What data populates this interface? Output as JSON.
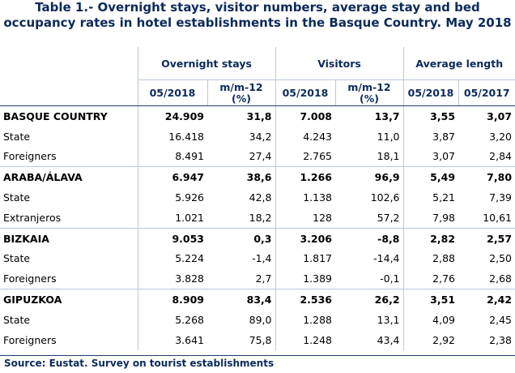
{
  "title": "Table 1.- Overnight stays, visitor numbers, average stay and bed occupancy rates in hotel establishments in the Basque Country. May 2018",
  "headers": {
    "groups": [
      "Overnight stays",
      "Visitors",
      "Average length"
    ],
    "sub": [
      "05/2018",
      "m/m-12 (%)",
      "05/2018",
      "m/m-12 (%)",
      "05/2018",
      "05/2017"
    ]
  },
  "rows": [
    {
      "label": "BASQUE COUNTRY",
      "type": "region",
      "values": [
        "24.909",
        "31,8",
        "7.008",
        "13,7",
        "3,55",
        "3,07"
      ]
    },
    {
      "label": "State",
      "type": "sub",
      "values": [
        "16.418",
        "34,2",
        "4.243",
        "11,0",
        "3,87",
        "3,20"
      ]
    },
    {
      "label": "Foreigners",
      "type": "sub",
      "values": [
        "8.491",
        "27,4",
        "2.765",
        "18,1",
        "3,07",
        "2,84"
      ]
    },
    {
      "label": "ARABA/ÁLAVA",
      "type": "region",
      "values": [
        "6.947",
        "38,6",
        "1.266",
        "96,9",
        "5,49",
        "7,80"
      ]
    },
    {
      "label": "State",
      "type": "sub",
      "values": [
        "5.926",
        "42,8",
        "1.138",
        "102,6",
        "5,21",
        "7,39"
      ]
    },
    {
      "label": "Extranjeros",
      "type": "sub",
      "values": [
        "1.021",
        "18,2",
        "128",
        "57,2",
        "7,98",
        "10,61"
      ]
    },
    {
      "label": "BIZKAIA",
      "type": "region",
      "values": [
        "9.053",
        "0,3",
        "3.206",
        "-8,8",
        "2,82",
        "2,57"
      ]
    },
    {
      "label": "State",
      "type": "sub",
      "values": [
        "5.224",
        "-1,4",
        "1.817",
        "-14,4",
        "2,88",
        "2,50"
      ]
    },
    {
      "label": "Foreigners",
      "type": "sub",
      "values": [
        "3.828",
        "2,7",
        "1.389",
        "-0,1",
        "2,76",
        "2,68"
      ]
    },
    {
      "label": "GIPUZKOA",
      "type": "region",
      "values": [
        "8.909",
        "83,4",
        "2.536",
        "26,2",
        "3,51",
        "2,42"
      ]
    },
    {
      "label": "State",
      "type": "sub",
      "values": [
        "5.268",
        "89,0",
        "1.288",
        "13,1",
        "4,09",
        "2,45"
      ]
    },
    {
      "label": "Foreigners",
      "type": "sub",
      "values": [
        "3.641",
        "75,8",
        "1.248",
        "43,4",
        "2,92",
        "2,38"
      ]
    }
  ],
  "source": "Source: Eustat. Survey on tourist establishments"
}
